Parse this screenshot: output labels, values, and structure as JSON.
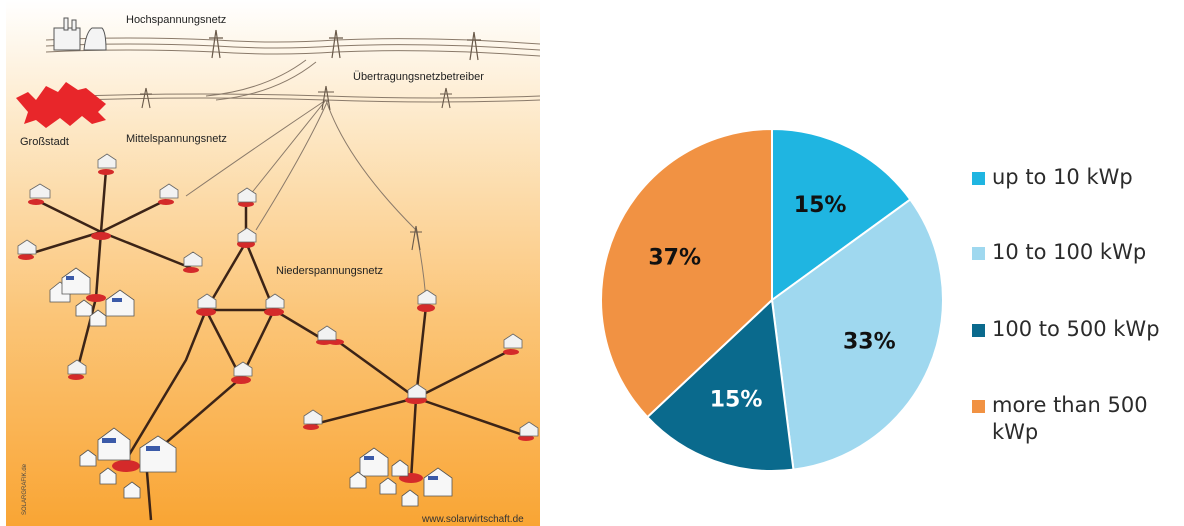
{
  "diagram": {
    "labels": {
      "hochspannung": "Hochspannungsnetz",
      "uebertragung": "Übertragungsnetzbetreiber",
      "grossstadt": "Großstadt",
      "mittelspannung": "Mittelspannungsnetz",
      "niederspannung": "Niederspannungsnetz",
      "credit_vertical": "SOLARGRAFIK.de",
      "credit_url": "www.solarwirtschaft.de"
    },
    "colors": {
      "background_top": "#ffffff",
      "background_bottom": "#f9a534",
      "city": "#e8262a",
      "node": "#d42a2a",
      "line": "#3c2417"
    }
  },
  "chart_data": {
    "type": "pie",
    "start_angle": 0,
    "direction": "clockwise",
    "slices": [
      {
        "label": "up to 10 kWp",
        "value": 15,
        "display": "15%",
        "color": "#1fb5e1",
        "text_color": "#111111"
      },
      {
        "label": "10 to 100 kWp",
        "value": 33,
        "display": "33%",
        "color": "#9fd8ef",
        "text_color": "#111111"
      },
      {
        "label": "100 to 500 kWp",
        "value": 15,
        "display": "15%",
        "color": "#0a6a8d",
        "text_color": "#ffffff"
      },
      {
        "label": "more than 500 kWp",
        "value": 37,
        "display": "37%",
        "color": "#f19243",
        "text_color": "#111111"
      }
    ],
    "legend_position": "right"
  }
}
